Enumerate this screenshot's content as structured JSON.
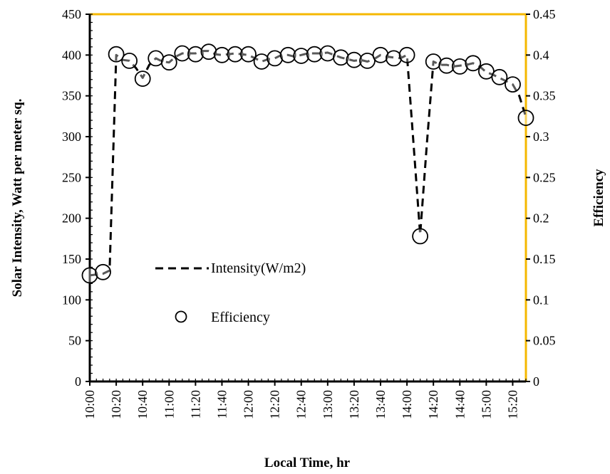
{
  "chart_data": {
    "type": "line",
    "title": "",
    "xlabel": "Local Time, hr",
    "ylabel": "Solar Intensity,  Watt per meter sq.",
    "y2label": "Efficiency",
    "ylim": [
      0,
      450
    ],
    "y2lim": [
      0,
      0.45
    ],
    "yticks": [
      "0",
      "50",
      "100",
      "150",
      "200",
      "250",
      "300",
      "350",
      "400",
      "450"
    ],
    "y2ticks": [
      "0",
      "0.05",
      "0.1",
      "0.15",
      "0.2",
      "0.25",
      "0.3",
      "0.35",
      "0.4",
      "0.45"
    ],
    "x": [
      "10:00",
      "10:05",
      "10:10",
      "10:15",
      "10:20",
      "10:25",
      "10:30",
      "10:35",
      "10:40",
      "10:45",
      "10:50",
      "10:55",
      "11:00",
      "11:05",
      "11:10",
      "11:15",
      "11:20",
      "11:25",
      "11:30",
      "11:35",
      "11:40",
      "11:45",
      "11:50",
      "11:55",
      "12:00",
      "12:05",
      "12:10",
      "12:15",
      "12:20",
      "12:25",
      "12:30",
      "12:35",
      "12:40",
      "12:45",
      "12:50",
      "12:55",
      "13:00",
      "13:05",
      "13:10",
      "13:15",
      "13:20",
      "13:25",
      "13:30",
      "13:35",
      "13:40",
      "13:45",
      "13:50",
      "13:55",
      "14:00",
      "14:05",
      "14:10",
      "14:15",
      "14:20",
      "14:25",
      "14:30",
      "14:35",
      "14:40",
      "14:45",
      "14:50",
      "14:55",
      "15:00",
      "15:05",
      "15:10",
      "15:15",
      "15:20",
      "15:25",
      "15:30"
    ],
    "xtick_labels": [
      "10:00",
      "10:20",
      "10:40",
      "11:00",
      "11:20",
      "11:40",
      "12:00",
      "12:20",
      "12:40",
      "13:00",
      "13:20",
      "13:40",
      "14:00",
      "14:20",
      "14:40",
      "15:00",
      "15:20"
    ],
    "series": [
      {
        "name": "Intensity(W/m2)",
        "axis": "left",
        "style": "dashed",
        "x": [
          "10:00",
          "10:05",
          "10:10",
          "10:15",
          "10:20",
          "10:25",
          "10:30",
          "10:35",
          "10:40",
          "10:45",
          "10:50",
          "10:55",
          "11:00",
          "11:05",
          "11:10",
          "11:15",
          "11:20",
          "11:25",
          "11:30",
          "11:35",
          "11:40",
          "11:45",
          "11:50",
          "11:55",
          "12:00",
          "12:05",
          "12:10",
          "12:15",
          "12:20",
          "12:25",
          "12:30",
          "12:35",
          "12:40",
          "12:45",
          "12:50",
          "12:55",
          "13:00",
          "13:05",
          "13:10",
          "13:15",
          "13:20",
          "13:25",
          "13:30",
          "13:35",
          "13:40",
          "13:45",
          "13:50",
          "13:55",
          "14:00",
          "14:05",
          "14:10",
          "14:15",
          "14:20",
          "14:25",
          "14:30",
          "14:35",
          "14:40",
          "14:45",
          "14:50",
          "14:55",
          "15:00",
          "15:05",
          "15:10",
          "15:15",
          "15:20",
          "15:25",
          "15:30"
        ],
        "values": [
          130,
          131,
          132,
          136,
          400,
          394,
          393,
          384,
          372,
          388,
          396,
          392,
          391,
          398,
          402,
          402,
          402,
          405,
          405,
          401,
          400,
          401,
          402,
          401,
          400,
          396,
          392,
          395,
          396,
          400,
          400,
          398,
          400,
          402,
          402,
          402,
          403,
          400,
          397,
          395,
          393,
          394,
          392,
          395,
          400,
          398,
          397,
          396,
          400,
          290,
          180,
          290,
          392,
          388,
          388,
          386,
          387,
          388,
          390,
          386,
          379,
          376,
          372,
          368,
          364,
          350,
          324
        ]
      },
      {
        "name": "Efficiency",
        "axis": "right",
        "style": "markers",
        "x": [
          "10:00",
          "10:10",
          "10:20",
          "10:30",
          "10:40",
          "10:50",
          "11:00",
          "11:10",
          "11:20",
          "11:30",
          "11:40",
          "11:50",
          "12:00",
          "12:10",
          "12:20",
          "12:30",
          "12:40",
          "12:50",
          "13:00",
          "13:10",
          "13:20",
          "13:30",
          "13:40",
          "13:50",
          "14:00",
          "14:10",
          "14:20",
          "14:30",
          "14:40",
          "14:50",
          "15:00",
          "15:10",
          "15:20",
          "15:30"
        ],
        "values": [
          0.13,
          0.134,
          0.401,
          0.393,
          0.371,
          0.396,
          0.391,
          0.402,
          0.401,
          0.404,
          0.4,
          0.401,
          0.401,
          0.392,
          0.396,
          0.4,
          0.399,
          0.401,
          0.402,
          0.397,
          0.394,
          0.393,
          0.4,
          0.396,
          0.4,
          0.178,
          0.392,
          0.387,
          0.386,
          0.39,
          0.38,
          0.373,
          0.364,
          0.323
        ]
      }
    ],
    "legend": [
      {
        "label": "Intensity(W/m2)",
        "symbol": "dashed-line"
      },
      {
        "label": "Efficiency",
        "symbol": "circle"
      }
    ],
    "legend_position": "center-left",
    "grid": false,
    "colors": {
      "axis": "#000000",
      "top_border": "#f5b800",
      "right_axis": "#f5b800",
      "line": "#000000",
      "marker_edge": "#000000",
      "marker_fill": "#ffffff"
    }
  }
}
